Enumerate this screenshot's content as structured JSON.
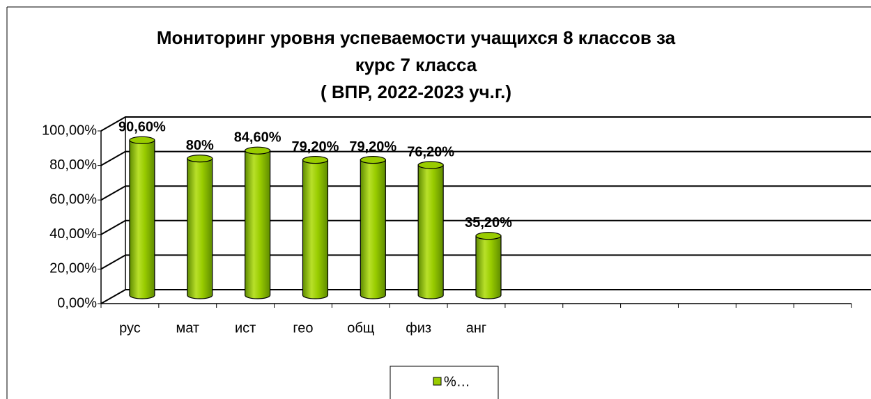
{
  "chart_data": {
    "type": "bar3d",
    "title": [
      "Мониторинг уровня успеваемости учащихся 8 классов за",
      "курс 7 класса",
      "(  ВПР, 2022-2023 уч.г.)"
    ],
    "categories": [
      "рус",
      "мат",
      "ист",
      "гео",
      "общ",
      "физ",
      "анг",
      null,
      null,
      null,
      null,
      null,
      null
    ],
    "series": [
      {
        "name": "%…",
        "color": "#99cc00",
        "values": [
          90.6,
          80,
          84.6,
          79.2,
          79.2,
          76.2,
          35.2,
          null,
          null,
          null,
          null,
          null,
          null
        ],
        "value_labels": [
          "90,60%",
          "80%",
          "84,60%",
          "79,20%",
          "79,20%",
          "76,20%",
          "35,20%",
          null,
          null,
          null,
          null,
          null,
          null
        ]
      }
    ],
    "ylim": [
      0,
      100
    ],
    "yticks": [
      {
        "value": 0,
        "label": "0,00%"
      },
      {
        "value": 20,
        "label": "20,00%"
      },
      {
        "value": 40,
        "label": "40,00%"
      },
      {
        "value": 60,
        "label": "60,00%"
      },
      {
        "value": 80,
        "label": "80,00%"
      },
      {
        "value": 100,
        "label": "100,00%"
      }
    ],
    "grid": true,
    "legend": "bottom"
  }
}
